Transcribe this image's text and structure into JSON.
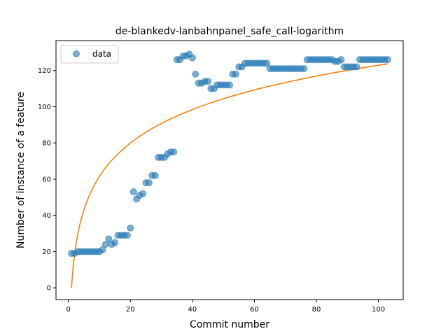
{
  "chart_data": {
    "type": "scatter",
    "title": "de-blankedv-lanbahnpanel_safe_call-logarithm",
    "xlabel": "Commit number",
    "ylabel": "Number of instance of a feature",
    "xlim": [
      -4,
      108
    ],
    "ylim": [
      -6.5,
      136.5
    ],
    "xticks": [
      0,
      20,
      40,
      60,
      80,
      100
    ],
    "yticks": [
      0,
      20,
      40,
      60,
      80,
      100,
      120
    ],
    "legend": {
      "position": "top-left",
      "entries": [
        "data"
      ]
    },
    "colors": {
      "data": "#1f77b4",
      "fit": "#ff7f0e"
    },
    "series": [
      {
        "name": "data",
        "kind": "scatter",
        "x": [
          1,
          2,
          3,
          4,
          5,
          6,
          7,
          8,
          9,
          10,
          11,
          12,
          13,
          14,
          15,
          16,
          17,
          18,
          19,
          20,
          21,
          22,
          23,
          24,
          25,
          26,
          27,
          28,
          29,
          30,
          31,
          32,
          33,
          34,
          35,
          36,
          37,
          38,
          39,
          40,
          41,
          42,
          43,
          44,
          45,
          46,
          47,
          48,
          49,
          50,
          51,
          52,
          53,
          54,
          55,
          56,
          57,
          58,
          59,
          60,
          61,
          62,
          63,
          64,
          65,
          66,
          67,
          68,
          69,
          70,
          71,
          72,
          73,
          74,
          75,
          76,
          77,
          78,
          79,
          80,
          81,
          82,
          83,
          84,
          85,
          86,
          87,
          88,
          89,
          90,
          91,
          92,
          93,
          94,
          95,
          96,
          97,
          98,
          99,
          100,
          101,
          102,
          103
        ],
        "y": [
          19,
          19,
          20,
          20,
          20,
          20,
          20,
          20,
          20,
          20,
          21,
          24,
          27,
          24,
          25,
          29,
          29,
          29,
          29,
          33,
          53,
          49,
          51,
          52,
          58,
          58,
          62,
          62,
          72,
          72,
          72,
          74,
          75,
          75,
          126,
          126,
          128,
          128,
          129,
          127,
          118,
          113,
          113,
          114,
          114,
          110,
          110,
          112,
          112,
          112,
          112,
          112,
          118,
          118,
          122,
          122,
          124,
          124,
          124,
          124,
          124,
          124,
          124,
          124,
          121,
          121,
          121,
          121,
          121,
          121,
          121,
          121,
          121,
          121,
          121,
          121,
          126,
          126,
          126,
          126,
          126,
          126,
          126,
          126,
          126,
          125,
          125,
          126,
          122,
          122,
          122,
          122,
          122,
          126,
          126,
          126,
          126,
          126,
          126,
          126,
          126,
          126,
          126
        ]
      },
      {
        "kind": "line",
        "x_range": [
          1,
          103
        ],
        "fit": {
          "form": "a*ln(x)+b",
          "a": 26.68,
          "b": 0
        }
      }
    ]
  }
}
